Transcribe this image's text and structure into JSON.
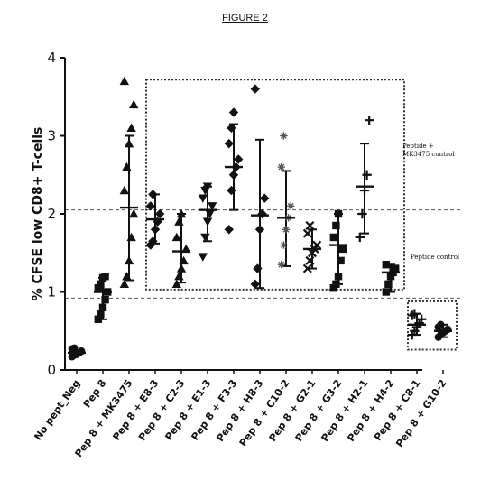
{
  "figure": {
    "title": "FIGURE 2"
  },
  "colors": {
    "ink": "#111111",
    "grey": "#555555",
    "box": "#333333"
  },
  "chart_data": {
    "type": "scatter",
    "ylabel": "% CFSE low CD8+ T-cells",
    "ylim": [
      0,
      4
    ],
    "yticks": [
      0,
      1,
      2,
      3,
      4
    ],
    "categories": [
      "No pept_Neg",
      "Pep 8",
      "Pep 8 + MK3475",
      "Pep 8 + E8-3",
      "Pep 8 + C2-3",
      "Pep 8 + E1-3",
      "Pep 8 + F3-3",
      "Pep 8 + H8-3",
      "Pep 8 + C10-2",
      "Pep 8 + G2-1",
      "Pep 8 + G3-2",
      "Pep 8 + H2-1",
      "Pep 8 + H4-2",
      "Pep 8 + C8-1",
      "Pep 8 + G10-2"
    ],
    "groups": [
      {
        "marker": "circle",
        "mean": 0.22,
        "low": 0.17,
        "high": 0.27,
        "points": [
          0.17,
          0.19,
          0.2,
          0.22,
          0.24,
          0.27,
          0.28
        ]
      },
      {
        "marker": "square",
        "mean": 1.0,
        "low": 0.65,
        "high": 1.18,
        "points": [
          0.65,
          0.72,
          0.8,
          0.9,
          1.0,
          1.05,
          1.1,
          1.18,
          1.2
        ]
      },
      {
        "marker": "triangle",
        "mean": 2.08,
        "low": 1.15,
        "high": 3.0,
        "points": [
          1.1,
          1.2,
          1.4,
          1.7,
          2.0,
          2.3,
          2.6,
          2.9,
          3.1,
          3.4,
          3.7
        ]
      },
      {
        "marker": "diamond",
        "mean": 1.93,
        "low": 1.62,
        "high": 2.25,
        "points": [
          1.6,
          1.65,
          1.8,
          1.9,
          2.0,
          2.1,
          2.25
        ]
      },
      {
        "marker": "triangle",
        "mean": 1.52,
        "low": 1.12,
        "high": 2.0,
        "points": [
          1.1,
          1.2,
          1.3,
          1.4,
          1.55,
          1.7,
          1.9,
          2.0
        ]
      },
      {
        "marker": "triangle-down",
        "mean": 2.05,
        "low": 1.65,
        "high": 2.35,
        "points": [
          1.45,
          1.7,
          1.9,
          2.0,
          2.1,
          2.2,
          2.3,
          2.35
        ]
      },
      {
        "marker": "diamond",
        "mean": 2.6,
        "low": 2.05,
        "high": 3.15,
        "points": [
          1.8,
          2.3,
          2.5,
          2.6,
          2.7,
          2.9,
          3.1,
          3.3
        ]
      },
      {
        "marker": "diamond",
        "mean": 1.98,
        "low": 1.05,
        "high": 2.95,
        "points": [
          1.1,
          1.3,
          1.8,
          2.0,
          2.2,
          3.6
        ]
      },
      {
        "marker": "star",
        "mean": 1.95,
        "low": 1.33,
        "high": 2.55,
        "points": [
          1.35,
          1.6,
          1.8,
          1.95,
          2.1,
          2.6,
          3.0
        ]
      },
      {
        "marker": "x",
        "mean": 1.55,
        "low": 1.3,
        "high": 1.8,
        "points": [
          1.3,
          1.4,
          1.5,
          1.55,
          1.6,
          1.75,
          1.85
        ]
      },
      {
        "marker": "square",
        "mean": 1.6,
        "low": 1.1,
        "high": 2.0,
        "points": [
          1.05,
          1.1,
          1.2,
          1.4,
          1.55,
          1.7,
          1.85,
          2.0
        ]
      },
      {
        "marker": "plus",
        "mean": 2.35,
        "low": 1.75,
        "high": 2.9,
        "points": [
          1.7,
          2.0,
          2.3,
          2.5,
          3.2
        ]
      },
      {
        "marker": "square",
        "mean": 1.25,
        "low": 1.0,
        "high": 1.35,
        "points": [
          1.0,
          1.1,
          1.2,
          1.25,
          1.3,
          1.35
        ]
      },
      {
        "marker": "plus",
        "mean": 0.58,
        "low": 0.45,
        "high": 0.72,
        "points": [
          0.45,
          0.5,
          0.55,
          0.6,
          0.65,
          0.7,
          0.72
        ]
      },
      {
        "marker": "circle",
        "mean": 0.5,
        "low": 0.42,
        "high": 0.58,
        "points": [
          0.42,
          0.45,
          0.48,
          0.5,
          0.52,
          0.55,
          0.58
        ]
      }
    ],
    "reference_lines": [
      {
        "y": 2.05,
        "label": "Peptide + MK3475 control"
      },
      {
        "y": 0.92,
        "label": "Peptide control"
      }
    ],
    "annotation_boxes": [
      {
        "from_category": 3,
        "to_category": 12,
        "y_low": 1.03,
        "y_high": 3.72
      },
      {
        "from_category": 13,
        "to_category": 14,
        "y_low": 0.26,
        "y_high": 0.88
      }
    ]
  }
}
